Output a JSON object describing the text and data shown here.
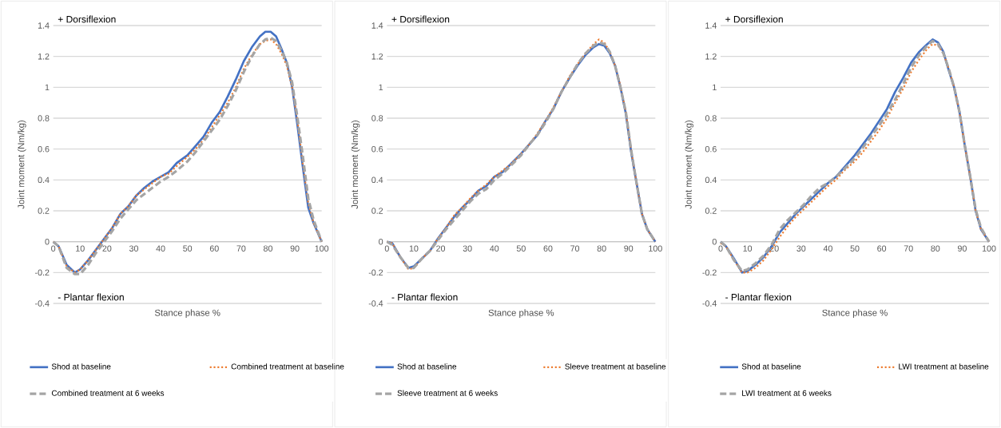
{
  "chart_data": [
    {
      "type": "line",
      "xlabel": "Stance phase %",
      "ylabel": "Joint moment (Nm/kg)",
      "annotations": [
        "+ Dorsiflexion",
        "- Plantar flexion"
      ],
      "x": [
        0,
        2,
        5,
        8,
        10,
        13,
        16,
        19,
        22,
        25,
        28,
        31,
        34,
        37,
        40,
        43,
        46,
        50,
        53,
        56,
        59,
        62,
        65,
        68,
        71,
        74,
        77,
        79,
        81,
        83,
        85,
        87,
        89,
        91,
        93,
        95,
        97,
        100
      ],
      "series": [
        {
          "name": "Shod at baseline",
          "color": "#4472c4",
          "line_style": "solid",
          "values": [
            0,
            -0.03,
            -0.15,
            -0.2,
            -0.18,
            -0.12,
            -0.05,
            0.02,
            0.09,
            0.18,
            0.23,
            0.3,
            0.35,
            0.39,
            0.42,
            0.45,
            0.51,
            0.56,
            0.62,
            0.68,
            0.77,
            0.84,
            0.94,
            1.05,
            1.17,
            1.26,
            1.33,
            1.36,
            1.36,
            1.33,
            1.25,
            1.16,
            1.0,
            0.75,
            0.48,
            0.22,
            0.12,
            0
          ]
        },
        {
          "name": "Combined treatment at baseline",
          "color": "#ed7d31",
          "line_style": "dotted",
          "values": [
            0,
            -0.03,
            -0.16,
            -0.2,
            -0.18,
            -0.12,
            -0.05,
            0.02,
            0.09,
            0.18,
            0.23,
            0.3,
            0.34,
            0.38,
            0.42,
            0.44,
            0.49,
            0.55,
            0.6,
            0.66,
            0.74,
            0.82,
            0.9,
            1.0,
            1.12,
            1.21,
            1.28,
            1.3,
            1.31,
            1.28,
            1.22,
            1.14,
            1.0,
            0.78,
            0.5,
            0.25,
            0.12,
            0
          ]
        },
        {
          "name": "Combined treatment at 6 weeks",
          "color": "#a5a5a5",
          "line_style": "dashed",
          "values": [
            0,
            -0.03,
            -0.17,
            -0.21,
            -0.21,
            -0.15,
            -0.07,
            0.0,
            0.07,
            0.15,
            0.21,
            0.27,
            0.31,
            0.35,
            0.39,
            0.42,
            0.46,
            0.52,
            0.58,
            0.65,
            0.72,
            0.79,
            0.88,
            0.98,
            1.1,
            1.2,
            1.28,
            1.31,
            1.32,
            1.3,
            1.24,
            1.16,
            1.03,
            0.8,
            0.55,
            0.28,
            0.14,
            0
          ]
        }
      ],
      "xlim": [
        0,
        100
      ],
      "xticks": [
        0,
        10,
        20,
        30,
        40,
        50,
        60,
        70,
        80,
        90,
        100
      ],
      "ylim": [
        -0.4,
        1.4
      ],
      "yticks": [
        -0.4,
        -0.2,
        0,
        0.2,
        0.4,
        0.6,
        0.8,
        1,
        1.2,
        1.4
      ],
      "grid": "y",
      "legend": "bottom"
    },
    {
      "type": "line",
      "xlabel": "Stance phase %",
      "ylabel": "Joint moment (Nm/kg)",
      "annotations": [
        "+ Dorsiflexion",
        "- Plantar flexion"
      ],
      "x": [
        0,
        2,
        5,
        8,
        10,
        13,
        16,
        19,
        22,
        25,
        28,
        31,
        34,
        37,
        40,
        43,
        46,
        50,
        53,
        56,
        59,
        62,
        65,
        68,
        71,
        74,
        77,
        79,
        81,
        83,
        85,
        87,
        89,
        91,
        93,
        95,
        97,
        100
      ],
      "series": [
        {
          "name": "Shod at baseline",
          "color": "#4472c4",
          "line_style": "solid",
          "values": [
            0,
            -0.01,
            -0.1,
            -0.17,
            -0.16,
            -0.11,
            -0.06,
            0.02,
            0.09,
            0.16,
            0.22,
            0.27,
            0.33,
            0.36,
            0.42,
            0.45,
            0.5,
            0.57,
            0.63,
            0.69,
            0.78,
            0.86,
            0.97,
            1.06,
            1.14,
            1.21,
            1.26,
            1.28,
            1.27,
            1.22,
            1.14,
            1.0,
            0.83,
            0.58,
            0.38,
            0.18,
            0.08,
            0
          ]
        },
        {
          "name": "Sleeve treatment at baseline",
          "color": "#ed7d31",
          "line_style": "dotted",
          "values": [
            0,
            -0.01,
            -0.1,
            -0.18,
            -0.17,
            -0.11,
            -0.06,
            0.02,
            0.09,
            0.17,
            0.22,
            0.28,
            0.33,
            0.37,
            0.42,
            0.46,
            0.5,
            0.57,
            0.63,
            0.7,
            0.78,
            0.87,
            0.97,
            1.07,
            1.15,
            1.22,
            1.28,
            1.31,
            1.29,
            1.23,
            1.14,
            1.01,
            0.84,
            0.59,
            0.38,
            0.18,
            0.08,
            0
          ]
        },
        {
          "name": "Sleeve treatment at 6 weeks",
          "color": "#a5a5a5",
          "line_style": "dashed",
          "values": [
            0,
            -0.02,
            -0.1,
            -0.17,
            -0.17,
            -0.11,
            -0.06,
            0.01,
            0.08,
            0.14,
            0.2,
            0.26,
            0.31,
            0.34,
            0.4,
            0.44,
            0.49,
            0.56,
            0.63,
            0.69,
            0.77,
            0.86,
            0.97,
            1.06,
            1.15,
            1.22,
            1.27,
            1.29,
            1.28,
            1.23,
            1.14,
            1.0,
            0.84,
            0.59,
            0.38,
            0.18,
            0.08,
            0
          ]
        }
      ],
      "xlim": [
        0,
        100
      ],
      "xticks": [
        0,
        10,
        20,
        30,
        40,
        50,
        60,
        70,
        80,
        90,
        100
      ],
      "ylim": [
        -0.4,
        1.4
      ],
      "yticks": [
        -0.4,
        -0.2,
        0,
        0.2,
        0.4,
        0.6,
        0.8,
        1,
        1.2,
        1.4
      ],
      "grid": "y",
      "legend": "bottom"
    },
    {
      "type": "line",
      "xlabel": "Stance phase %",
      "ylabel": "Joint moment (Nm/kg)",
      "annotations": [
        "+ Dorsiflexion",
        "- Plantar flexion"
      ],
      "x": [
        0,
        2,
        5,
        8,
        10,
        13,
        16,
        19,
        22,
        25,
        28,
        31,
        34,
        37,
        40,
        43,
        46,
        50,
        53,
        56,
        59,
        62,
        65,
        68,
        71,
        74,
        77,
        79,
        81,
        83,
        85,
        87,
        89,
        91,
        93,
        95,
        97,
        100
      ],
      "series": [
        {
          "name": "Shod at baseline",
          "color": "#4472c4",
          "line_style": "solid",
          "values": [
            0,
            -0.03,
            -0.11,
            -0.2,
            -0.19,
            -0.15,
            -0.1,
            -0.03,
            0.06,
            0.12,
            0.18,
            0.23,
            0.28,
            0.33,
            0.38,
            0.42,
            0.48,
            0.56,
            0.63,
            0.7,
            0.78,
            0.86,
            0.97,
            1.06,
            1.16,
            1.23,
            1.28,
            1.31,
            1.29,
            1.23,
            1.11,
            1.0,
            0.84,
            0.62,
            0.42,
            0.2,
            0.08,
            0
          ]
        },
        {
          "name": "LWI treatment at baseline",
          "color": "#ed7d31",
          "line_style": "dotted",
          "values": [
            -0.01,
            -0.03,
            -0.12,
            -0.2,
            -0.2,
            -0.17,
            -0.12,
            -0.05,
            0.03,
            0.1,
            0.16,
            0.21,
            0.26,
            0.31,
            0.36,
            0.4,
            0.46,
            0.52,
            0.58,
            0.65,
            0.72,
            0.8,
            0.9,
            0.99,
            1.1,
            1.18,
            1.25,
            1.28,
            1.27,
            1.22,
            1.12,
            1.0,
            0.84,
            0.62,
            0.42,
            0.2,
            0.08,
            0
          ]
        },
        {
          "name": "LWI treatment at 6 weeks",
          "color": "#a5a5a5",
          "line_style": "dashed",
          "values": [
            0,
            -0.03,
            -0.12,
            -0.19,
            -0.18,
            -0.14,
            -0.09,
            -0.02,
            0.08,
            0.14,
            0.19,
            0.24,
            0.3,
            0.35,
            0.38,
            0.42,
            0.47,
            0.54,
            0.61,
            0.68,
            0.75,
            0.83,
            0.92,
            1.02,
            1.13,
            1.21,
            1.27,
            1.3,
            1.28,
            1.22,
            1.12,
            1.0,
            0.84,
            0.62,
            0.42,
            0.21,
            0.09,
            0
          ]
        }
      ],
      "xlim": [
        0,
        100
      ],
      "xticks": [
        0,
        10,
        20,
        30,
        40,
        50,
        60,
        70,
        80,
        90,
        100
      ],
      "ylim": [
        -0.4,
        1.4
      ],
      "yticks": [
        -0.4,
        -0.2,
        0,
        0.2,
        0.4,
        0.6,
        0.8,
        1,
        1.2,
        1.4
      ],
      "grid": "y",
      "legend": "bottom"
    }
  ]
}
